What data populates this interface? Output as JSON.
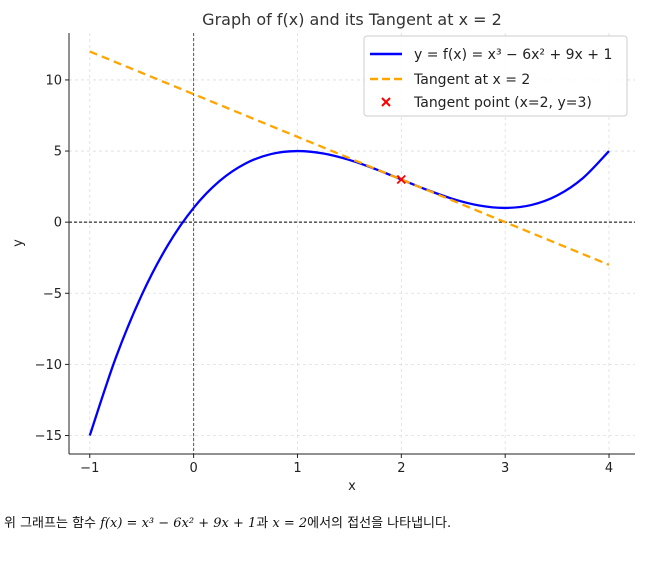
{
  "chart_data": {
    "type": "line",
    "title": "Graph of f(x) and its Tangent at x = 2",
    "xlabel": "x",
    "ylabel": "y",
    "xlim": [
      -1.2,
      4.25
    ],
    "ylim": [
      -16.3,
      13.3
    ],
    "xticks": [
      -1,
      0,
      1,
      2,
      3,
      4
    ],
    "xtick_labels": [
      "−1",
      "0",
      "1",
      "2",
      "3",
      "4"
    ],
    "yticks": [
      -15,
      -10,
      -5,
      0,
      5,
      10
    ],
    "ytick_labels": [
      "−15",
      "−10",
      "−5",
      "0",
      "5",
      "10"
    ],
    "grid": true,
    "legend_position": "top-right",
    "x": [
      -1.0,
      -0.75,
      -0.5,
      -0.25,
      0.0,
      0.25,
      0.5,
      0.75,
      1.0,
      1.25,
      1.5,
      1.75,
      2.0,
      2.25,
      2.5,
      2.75,
      3.0,
      3.25,
      3.5,
      3.75,
      4.0
    ],
    "series": [
      {
        "name": "y = f(x) = x³ − 6x² + 9x + 1",
        "legend_label": "y = f(x) = x³ − 6x² + 9x + 1",
        "color": "#0000ff",
        "style": "solid",
        "values": [
          -15.0,
          -9.547,
          -5.125,
          -1.64,
          1.0,
          2.891,
          4.125,
          4.797,
          5.0,
          4.828,
          4.375,
          3.734,
          3.0,
          2.266,
          1.625,
          1.172,
          1.0,
          1.203,
          1.875,
          3.109,
          5.0
        ]
      },
      {
        "name": "Tangent at x = 2",
        "legend_label": "Tangent at x = 2",
        "color": "#ffa500",
        "style": "dashed",
        "values": [
          12.0,
          11.25,
          10.5,
          9.75,
          9.0,
          8.25,
          7.5,
          6.75,
          6.0,
          5.25,
          4.5,
          3.75,
          3.0,
          2.25,
          1.5,
          0.75,
          0.0,
          -0.75,
          -1.5,
          -2.25,
          -3.0
        ]
      }
    ],
    "points": [
      {
        "name": "Tangent point (x=2, y=3)",
        "legend_label": "Tangent point (x=2, y=3)",
        "x": 2,
        "y": 3,
        "color": "#ff0000",
        "marker": "x"
      }
    ],
    "reference_lines": [
      {
        "orientation": "horizontal",
        "value": 0,
        "color": "#000000",
        "style": "dashed"
      },
      {
        "orientation": "vertical",
        "value": 0,
        "color": "#555555",
        "style": "dashed"
      }
    ]
  },
  "caption": {
    "prefix": "위 그래프는 함수 ",
    "formula": "f(x) = x³ − 6x² + 9x + 1",
    "middle": "과 ",
    "point": "x = 2",
    "suffix": "에서의 접선을 나타냅니다."
  }
}
